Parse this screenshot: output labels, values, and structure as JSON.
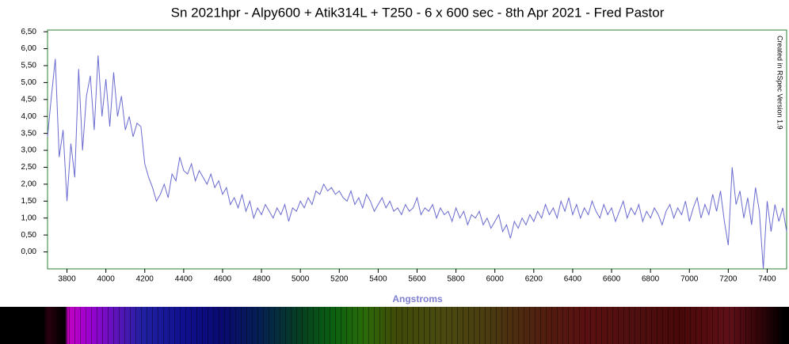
{
  "chart_data": {
    "type": "line",
    "title": "Sn 2021hpr - Alpy600 + Atik314L + T250 - 6 x 600 sec - 8th Apr 2021 - Fred Pastor",
    "x_label": "Angstroms",
    "annotation": "Created in RSpec Version 1.9",
    "color": "#6a6ad0",
    "x": [
      3700,
      3720,
      3740,
      3760,
      3780,
      3800,
      3820,
      3840,
      3860,
      3880,
      3900,
      3920,
      3940,
      3960,
      3980,
      4000,
      4020,
      4040,
      4060,
      4080,
      4100,
      4120,
      4140,
      4160,
      4180,
      4200,
      4220,
      4240,
      4260,
      4280,
      4300,
      4320,
      4340,
      4360,
      4380,
      4400,
      4420,
      4440,
      4460,
      4480,
      4500,
      4520,
      4540,
      4560,
      4580,
      4600,
      4620,
      4640,
      4660,
      4680,
      4700,
      4720,
      4740,
      4760,
      4780,
      4800,
      4820,
      4840,
      4860,
      4880,
      4900,
      4920,
      4940,
      4960,
      4980,
      5000,
      5020,
      5040,
      5060,
      5080,
      5100,
      5120,
      5140,
      5160,
      5180,
      5200,
      5220,
      5240,
      5260,
      5280,
      5300,
      5320,
      5340,
      5360,
      5380,
      5400,
      5420,
      5440,
      5460,
      5480,
      5500,
      5520,
      5540,
      5560,
      5580,
      5600,
      5620,
      5640,
      5660,
      5680,
      5700,
      5720,
      5740,
      5760,
      5780,
      5800,
      5820,
      5840,
      5860,
      5880,
      5900,
      5920,
      5940,
      5960,
      5980,
      6000,
      6020,
      6040,
      6060,
      6080,
      6100,
      6120,
      6140,
      6160,
      6180,
      6200,
      6220,
      6240,
      6260,
      6280,
      6300,
      6320,
      6340,
      6360,
      6380,
      6400,
      6420,
      6440,
      6460,
      6480,
      6500,
      6520,
      6540,
      6560,
      6580,
      6600,
      6620,
      6640,
      6660,
      6680,
      6700,
      6720,
      6740,
      6760,
      6780,
      6800,
      6820,
      6840,
      6860,
      6880,
      6900,
      6920,
      6940,
      6960,
      6980,
      7000,
      7020,
      7040,
      7060,
      7080,
      7100,
      7120,
      7140,
      7160,
      7180,
      7200,
      7220,
      7240,
      7260,
      7280,
      7300,
      7320,
      7340,
      7360,
      7380,
      7400,
      7420,
      7440,
      7460,
      7480,
      7500
    ],
    "values": [
      3.4,
      4.6,
      5.7,
      2.8,
      3.6,
      1.5,
      3.2,
      2.2,
      5.4,
      3.0,
      4.6,
      5.2,
      3.6,
      5.8,
      4.0,
      5.1,
      3.7,
      5.3,
      4.0,
      4.6,
      3.6,
      4.0,
      3.4,
      3.8,
      3.7,
      2.6,
      2.2,
      1.9,
      1.5,
      1.7,
      2.0,
      1.6,
      2.3,
      2.1,
      2.8,
      2.4,
      2.3,
      2.6,
      2.1,
      2.4,
      2.2,
      2.0,
      2.3,
      1.9,
      2.1,
      1.7,
      1.9,
      1.4,
      1.6,
      1.3,
      1.7,
      1.2,
      1.5,
      1.0,
      1.3,
      1.1,
      1.4,
      1.2,
      1.0,
      1.3,
      1.1,
      1.4,
      0.9,
      1.3,
      1.2,
      1.5,
      1.3,
      1.6,
      1.4,
      1.8,
      1.7,
      2.0,
      1.8,
      1.9,
      1.7,
      1.8,
      1.6,
      1.5,
      1.8,
      1.4,
      1.6,
      1.3,
      1.7,
      1.5,
      1.2,
      1.4,
      1.6,
      1.3,
      1.5,
      1.2,
      1.3,
      1.1,
      1.4,
      1.2,
      1.3,
      1.6,
      1.1,
      1.3,
      1.2,
      1.4,
      1.0,
      1.3,
      1.1,
      1.2,
      0.9,
      1.3,
      1.0,
      1.2,
      0.8,
      1.1,
      1.0,
      1.2,
      0.8,
      1.0,
      0.7,
      0.9,
      1.1,
      0.6,
      0.8,
      0.4,
      0.9,
      0.7,
      1.0,
      0.8,
      1.1,
      0.9,
      1.2,
      1.0,
      1.4,
      1.1,
      1.3,
      1.0,
      1.5,
      1.2,
      1.6,
      1.1,
      1.4,
      1.0,
      1.3,
      1.1,
      1.5,
      1.2,
      1.0,
      1.4,
      1.1,
      1.3,
      0.9,
      1.2,
      1.5,
      1.0,
      1.3,
      1.1,
      1.4,
      0.9,
      1.2,
      1.0,
      1.3,
      1.1,
      0.8,
      1.2,
      1.4,
      1.0,
      1.3,
      1.1,
      1.5,
      0.9,
      1.3,
      1.6,
      1.0,
      1.4,
      1.1,
      1.7,
      1.2,
      1.8,
      0.9,
      0.2,
      2.5,
      1.4,
      1.8,
      1.0,
      1.6,
      0.8,
      1.9,
      1.2,
      -0.5,
      1.5,
      0.6,
      1.4,
      0.9,
      1.3,
      0.6
    ],
    "xlim": [
      3700,
      7500
    ],
    "xticks": [
      3800,
      4000,
      4200,
      4400,
      4600,
      4800,
      5000,
      5200,
      5400,
      5600,
      5800,
      6000,
      6200,
      6400,
      6600,
      6800,
      7000,
      7200,
      7400
    ],
    "ylim": [
      -0.5,
      6.55
    ],
    "yticks": [
      {
        "value": 0,
        "label": "0,00"
      },
      {
        "value": 0.5,
        "label": "0,50"
      },
      {
        "value": 1,
        "label": "1,00"
      },
      {
        "value": 1.5,
        "label": "1,50"
      },
      {
        "value": 2,
        "label": "2,00"
      },
      {
        "value": 2.5,
        "label": "2,50"
      },
      {
        "value": 3,
        "label": "3,00"
      },
      {
        "value": 3.5,
        "label": "3,50"
      },
      {
        "value": 4,
        "label": "4,00"
      },
      {
        "value": 4.5,
        "label": "4,50"
      },
      {
        "value": 5,
        "label": "5,00"
      },
      {
        "value": 5.5,
        "label": "5,50"
      },
      {
        "value": 6,
        "label": "6,00"
      },
      {
        "value": 6.5,
        "label": "6,50"
      }
    ]
  }
}
